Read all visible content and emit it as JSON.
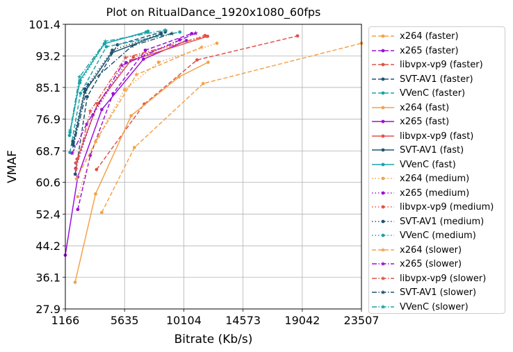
{
  "chart_data": {
    "type": "line",
    "title": "Plot on RitualDance_1920x1080_60fps",
    "xlabel": "Bitrate (Kb/s)",
    "ylabel": "VMAF",
    "xlim": [
      1166,
      23507
    ],
    "ylim": [
      27.9,
      101.4
    ],
    "xticks": [
      "1166",
      "5635",
      "10104",
      "14573",
      "19042",
      "23507"
    ],
    "yticks": [
      "27.9",
      "36.1",
      "44.2",
      "52.4",
      "60.6",
      "68.7",
      "76.9",
      "85.1",
      "93.2",
      "101.4"
    ],
    "grid": true,
    "legend_position": "outside right",
    "series": [
      {
        "name": "x264 (faster)",
        "color": "#f4a24a",
        "dash": "dashed",
        "marker": "circle",
        "points": [
          [
            3914,
            52.8
          ],
          [
            6380,
            69.6
          ],
          [
            11566,
            86.1
          ],
          [
            23507,
            96.5
          ]
        ]
      },
      {
        "name": "x265 (faster)",
        "color": "#9b0fd9",
        "dash": "dashed",
        "marker": "circle",
        "points": [
          [
            2104,
            53.6
          ],
          [
            3052,
            67.6
          ],
          [
            4770,
            83.5
          ],
          [
            7200,
            94.7
          ],
          [
            10700,
            99.0
          ]
        ]
      },
      {
        "name": "libvpx-vp9 (faster)",
        "color": "#e0524a",
        "dash": "dashed",
        "marker": "circle",
        "points": [
          [
            3520,
            63.9
          ],
          [
            7123,
            80.8
          ],
          [
            11101,
            92.2
          ],
          [
            18683,
            98.4
          ]
        ]
      },
      {
        "name": "SVT-AV1 (faster)",
        "color": "#1f5470",
        "dash": "dashed",
        "marker": "circle",
        "points": [
          [
            1914,
            62.7
          ],
          [
            2816,
            82.7
          ],
          [
            5100,
            96.1
          ],
          [
            8730,
            99.7
          ]
        ]
      },
      {
        "name": "VVenC (faster)",
        "color": "#1aa3a8",
        "dash": "dashed",
        "marker": "circle",
        "points": [
          [
            1514,
            68.3
          ],
          [
            2310,
            83.6
          ],
          [
            4260,
            95.6
          ],
          [
            9800,
            99.4
          ]
        ]
      },
      {
        "name": "x264 (fast)",
        "color": "#f4a24a",
        "dash": "solid",
        "marker": "circle",
        "points": [
          [
            1902,
            34.8
          ],
          [
            3447,
            57.6
          ],
          [
            6129,
            77.8
          ],
          [
            9730,
            87.8
          ],
          [
            11940,
            91.6
          ]
        ]
      },
      {
        "name": "x265 (fast)",
        "color": "#9b0fd9",
        "dash": "solid",
        "marker": "circle",
        "points": [
          [
            1162,
            41.8
          ],
          [
            2103,
            62.0
          ],
          [
            3917,
            79.4
          ],
          [
            7060,
            92.4
          ],
          [
            10300,
            97.2
          ]
        ]
      },
      {
        "name": "libvpx-vp9 (fast)",
        "color": "#e0524a",
        "dash": "solid",
        "marker": "circle",
        "points": [
          [
            2050,
            66.6
          ],
          [
            3600,
            80.9
          ],
          [
            6100,
            92.0
          ],
          [
            11900,
            98.3
          ]
        ]
      },
      {
        "name": "SVT-AV1 (fast)",
        "color": "#1f5470",
        "dash": "solid",
        "marker": "circle",
        "points": [
          [
            1746,
            70.4
          ],
          [
            2624,
            83.9
          ],
          [
            4650,
            94.0
          ],
          [
            8400,
            98.9
          ]
        ]
      },
      {
        "name": "VVenC (fast)",
        "color": "#1aa3a8",
        "dash": "solid",
        "marker": "circle",
        "points": [
          [
            1520,
            73.5
          ],
          [
            2260,
            86.9
          ],
          [
            4110,
            96.4
          ],
          [
            7260,
            99.4
          ]
        ]
      },
      {
        "name": "x264 (medium)",
        "color": "#f4a24a",
        "dash": "dotted",
        "marker": "circle",
        "points": [
          [
            2104,
            56.9
          ],
          [
            3447,
            71.1
          ],
          [
            5634,
            84.5
          ],
          [
            8200,
            91.6
          ],
          [
            12600,
            96.5
          ]
        ]
      },
      {
        "name": "x265 (medium)",
        "color": "#9b0fd9",
        "dash": "dotted",
        "marker": "circle",
        "points": [
          [
            1950,
            64.2
          ],
          [
            3250,
            78.0
          ],
          [
            5750,
            91.5
          ],
          [
            9800,
            97.4
          ]
        ]
      },
      {
        "name": "libvpx-vp9 (medium)",
        "color": "#e0524a",
        "dash": "dotted",
        "marker": "circle",
        "points": [
          [
            1950,
            65.6
          ],
          [
            3600,
            80.9
          ],
          [
            6300,
            92.9
          ],
          [
            11700,
            98.5
          ]
        ]
      },
      {
        "name": "SVT-AV1 (medium)",
        "color": "#1f5470",
        "dash": "dotted",
        "marker": "circle",
        "points": [
          [
            1730,
            71.2
          ],
          [
            2640,
            84.7
          ],
          [
            4710,
            94.7
          ],
          [
            8700,
            99.4
          ]
        ]
      },
      {
        "name": "VVenC (medium)",
        "color": "#1aa3a8",
        "dash": "dotted",
        "marker": "circle",
        "points": [
          [
            1480,
            72.7
          ],
          [
            2260,
            86.3
          ],
          [
            4140,
            96.4
          ],
          [
            7400,
            99.6
          ]
        ]
      },
      {
        "name": "x264 (slower)",
        "color": "#f4a24a",
        "dash": "dashed",
        "marker": "star",
        "points": [
          [
            2000,
            61.5
          ],
          [
            3680,
            72.5
          ],
          [
            6530,
            88.4
          ],
          [
            11450,
            95.5
          ]
        ]
      },
      {
        "name": "x265 (slower)",
        "color": "#9b0fd9",
        "dash": "dashdot",
        "marker": "star",
        "points": [
          [
            1680,
            68.1
          ],
          [
            2770,
            75.6
          ],
          [
            5430,
            90.8
          ],
          [
            11000,
            99.1
          ]
        ]
      },
      {
        "name": "libvpx-vp9 (slower)",
        "color": "#e0524a",
        "dash": "dashdot",
        "marker": "star",
        "points": [
          [
            1970,
            64.0
          ],
          [
            3050,
            79.0
          ],
          [
            5700,
            92.8
          ],
          [
            11700,
            98.3
          ]
        ]
      },
      {
        "name": "SVT-AV1 (slower)",
        "color": "#1f5470",
        "dash": "dashdot",
        "marker": "star",
        "points": [
          [
            1786,
            70.0
          ],
          [
            2880,
            85.8
          ],
          [
            6200,
            95.8
          ],
          [
            9200,
            99.0
          ]
        ]
      },
      {
        "name": "VVenC (slower)",
        "color": "#1aa3a8",
        "dash": "dashdot",
        "marker": "star",
        "points": [
          [
            1530,
            74.0
          ],
          [
            2236,
            87.8
          ],
          [
            4195,
            97.0
          ],
          [
            8700,
            99.9
          ]
        ]
      }
    ]
  }
}
